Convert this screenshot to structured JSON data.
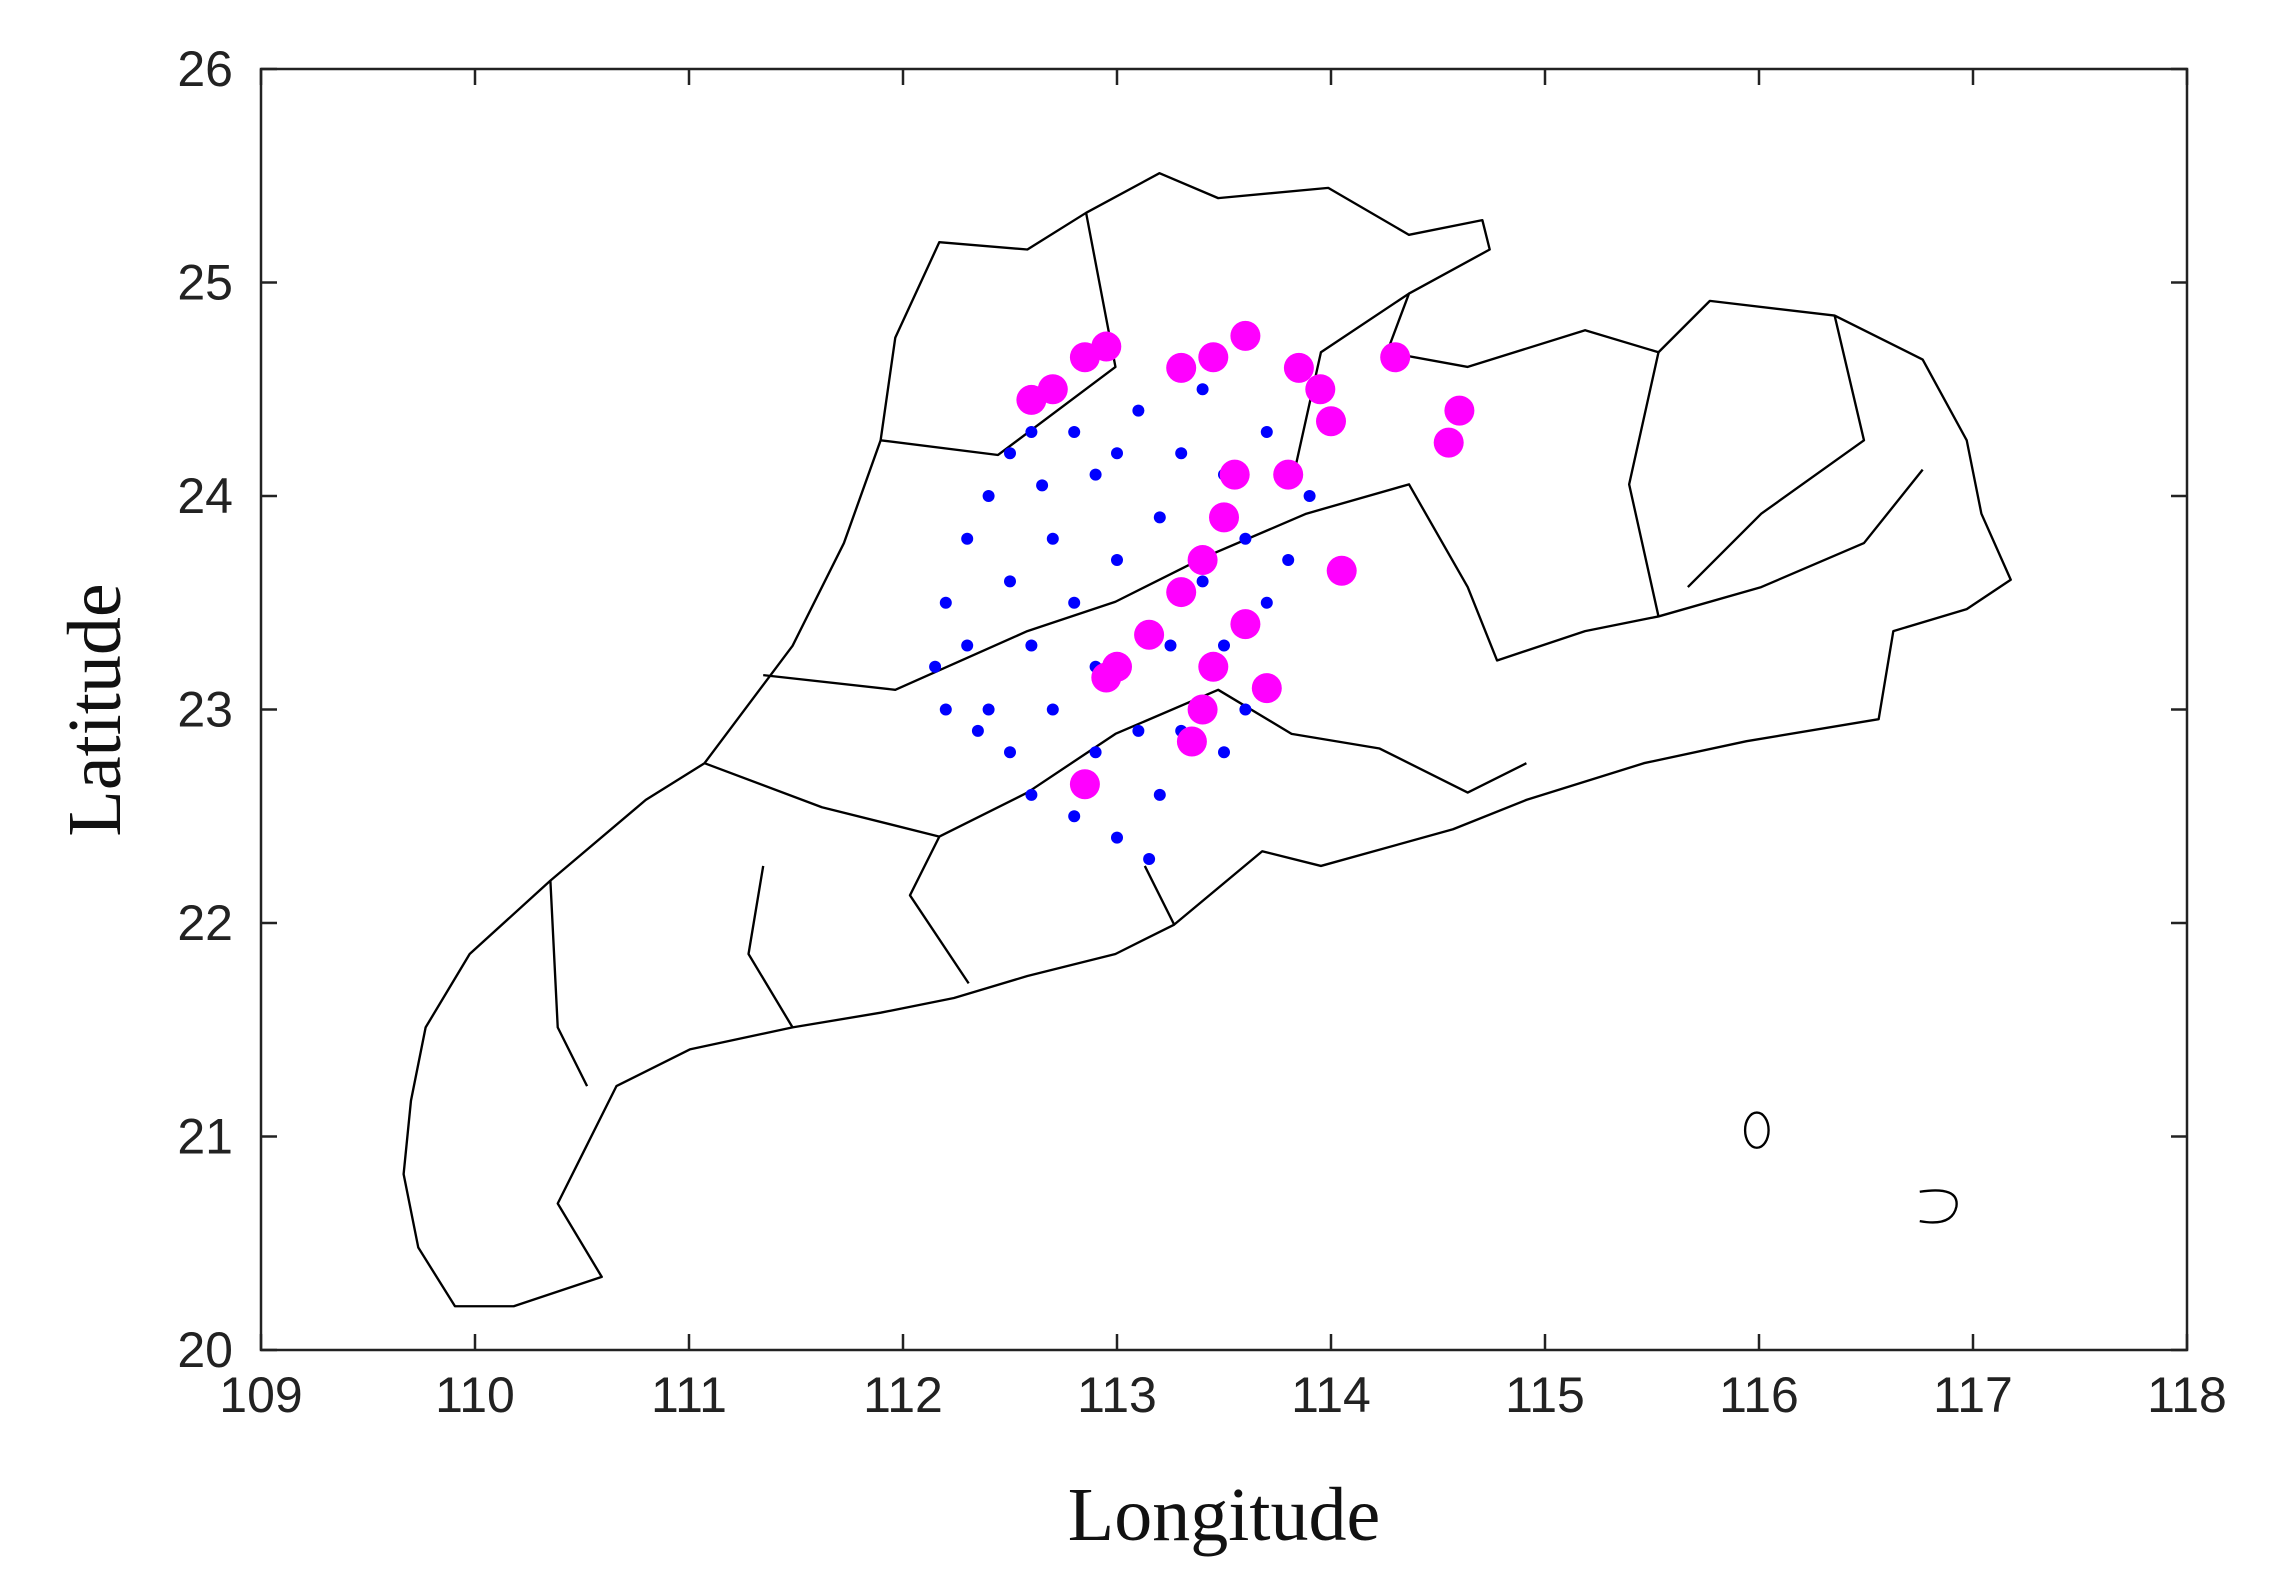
{
  "chart_data": {
    "type": "scatter",
    "xlabel": "Longitude",
    "ylabel": "Latitude",
    "xlim": [
      109,
      118
    ],
    "ylim": [
      20,
      26
    ],
    "xticks": [
      109,
      110,
      111,
      112,
      113,
      114,
      115,
      116,
      117,
      118
    ],
    "yticks": [
      20,
      21,
      22,
      23,
      24,
      25,
      26
    ],
    "series": [
      {
        "color": "#0000ff",
        "x": [
          112.2,
          112.15,
          112.3,
          112.4,
          112.5,
          112.6,
          112.8,
          112.9,
          112.3,
          112.4,
          112.5,
          112.6,
          112.8,
          113.0,
          113.15,
          113.2,
          113.1,
          112.9,
          112.7,
          112.6,
          112.8,
          113.0,
          113.2,
          113.3,
          113.1,
          113.4,
          113.5,
          113.6,
          113.7,
          113.8,
          113.5,
          113.6,
          113.5,
          113.3,
          112.7,
          112.5,
          113.0,
          113.7,
          113.9,
          112.2,
          112.35,
          112.9,
          113.4,
          112.65,
          113.25
        ],
        "values": [
          23.5,
          23.2,
          23.8,
          24.0,
          24.2,
          24.3,
          24.3,
          24.1,
          23.3,
          23.0,
          22.8,
          22.6,
          22.5,
          22.4,
          22.3,
          22.6,
          22.9,
          22.8,
          23.0,
          23.3,
          23.5,
          23.7,
          23.9,
          24.2,
          24.4,
          24.5,
          24.1,
          23.8,
          23.5,
          23.7,
          23.3,
          23.0,
          22.8,
          22.9,
          23.8,
          23.6,
          24.2,
          24.3,
          24.0,
          23.0,
          22.9,
          23.2,
          23.6,
          24.05,
          23.3
        ]
      },
      {
        "color": "#ff00ff",
        "x": [
          112.6,
          112.7,
          112.85,
          112.95,
          113.3,
          113.45,
          113.6,
          113.85,
          113.95,
          114.0,
          114.3,
          114.6,
          114.55,
          113.55,
          113.5,
          113.4,
          113.3,
          113.15,
          113.0,
          112.95,
          113.45,
          113.4,
          113.35,
          113.6,
          113.7,
          114.05,
          113.8,
          112.85
        ],
        "values": [
          24.45,
          24.5,
          24.65,
          24.7,
          24.6,
          24.65,
          24.75,
          24.6,
          24.5,
          24.35,
          24.65,
          24.4,
          24.25,
          24.1,
          23.9,
          23.7,
          23.55,
          23.35,
          23.2,
          23.15,
          23.2,
          23.0,
          22.85,
          23.4,
          23.1,
          23.65,
          24.1,
          22.65
        ]
      }
    ]
  }
}
